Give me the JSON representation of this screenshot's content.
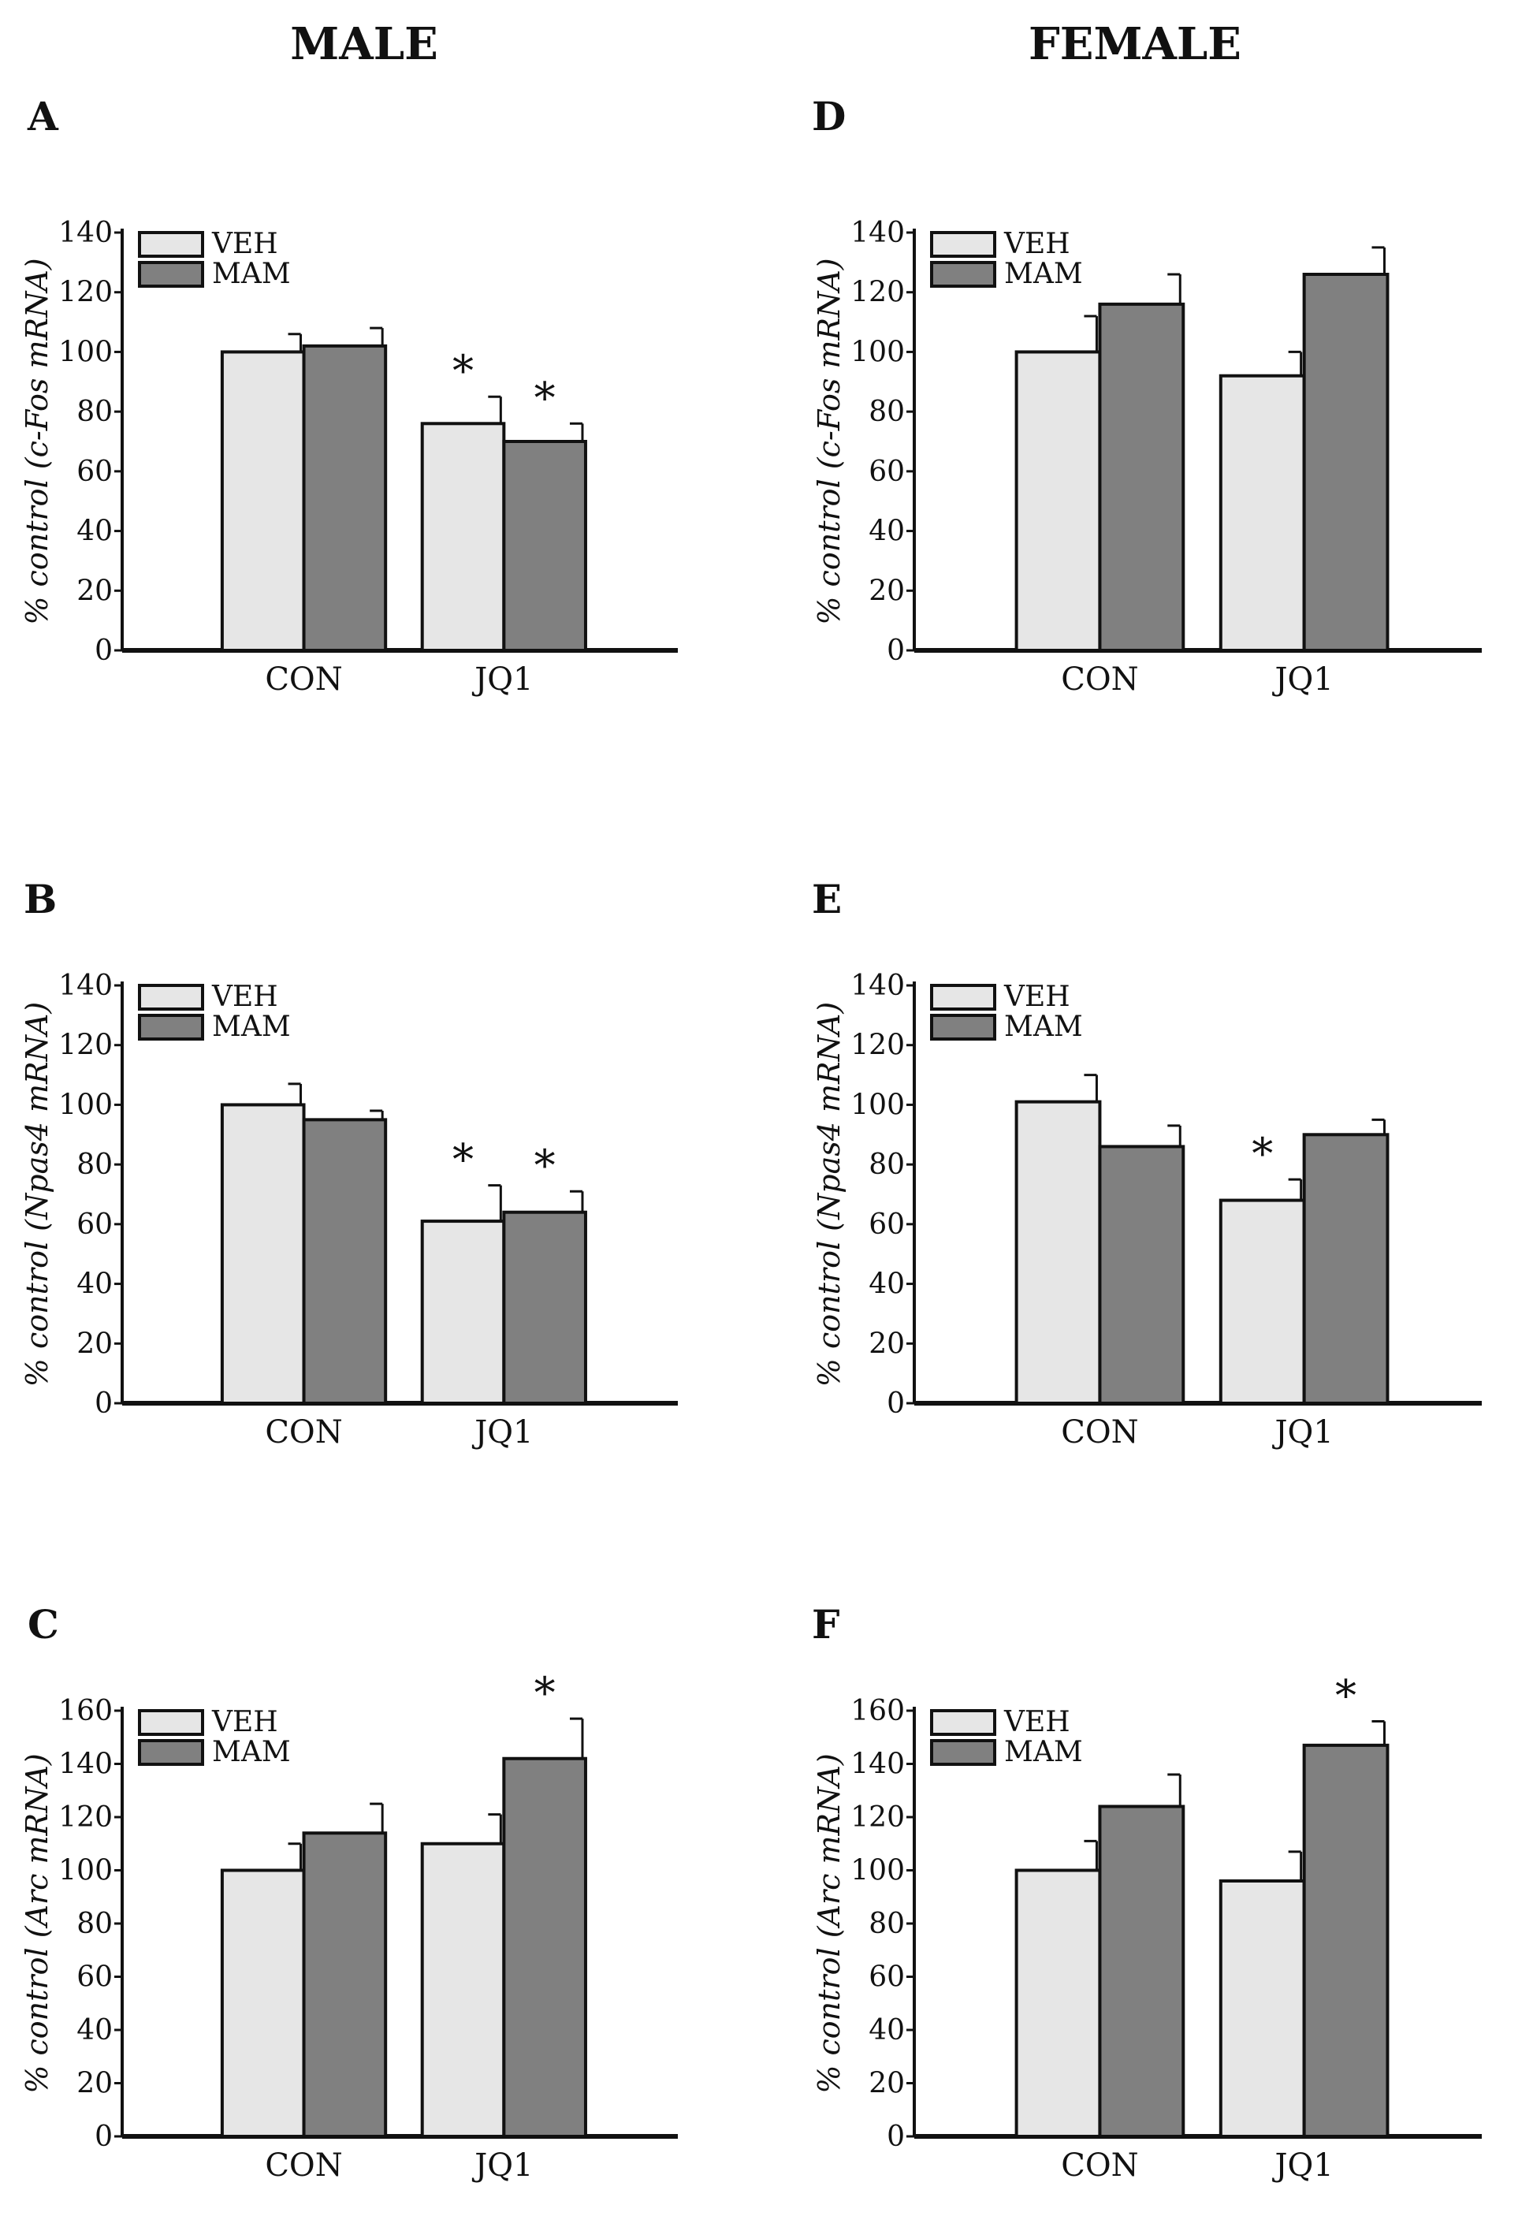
{
  "headers": {
    "male": "MALE",
    "female": "FEMALE"
  },
  "colors": {
    "veh": "#e6e6e6",
    "mam": "#808080",
    "stroke": "#111111",
    "background": "#ffffff"
  },
  "chart_data": [
    {
      "panel": "A",
      "column": "male",
      "type": "bar",
      "categories": [
        "CON",
        "JQ1"
      ],
      "series": [
        {
          "name": "VEH",
          "values": [
            100,
            76
          ],
          "errors": [
            6,
            9
          ],
          "significant": [
            false,
            true
          ]
        },
        {
          "name": "MAM",
          "values": [
            102,
            70
          ],
          "errors": [
            6,
            6
          ],
          "significant": [
            false,
            true
          ]
        }
      ],
      "legend_labels": [
        "VEH",
        "MAM"
      ],
      "ylabel_prefix": "% control (",
      "ylabel_gene": "c-Fos",
      "ylabel_suffix": " mRNA)",
      "ylim": [
        0,
        140
      ],
      "yticks": [
        0,
        20,
        40,
        60,
        80,
        100,
        120,
        140
      ],
      "sig_marker": "*"
    },
    {
      "panel": "B",
      "column": "male",
      "type": "bar",
      "categories": [
        "CON",
        "JQ1"
      ],
      "series": [
        {
          "name": "VEH",
          "values": [
            100,
            61
          ],
          "errors": [
            7,
            12
          ],
          "significant": [
            false,
            true
          ]
        },
        {
          "name": "MAM",
          "values": [
            95,
            64
          ],
          "errors": [
            3,
            7
          ],
          "significant": [
            false,
            true
          ]
        }
      ],
      "legend_labels": [
        "VEH",
        "MAM"
      ],
      "ylabel_prefix": "% control (",
      "ylabel_gene": "Npas4",
      "ylabel_suffix": " mRNA)",
      "ylim": [
        0,
        140
      ],
      "yticks": [
        0,
        20,
        40,
        60,
        80,
        100,
        120,
        140
      ],
      "sig_marker": "*"
    },
    {
      "panel": "C",
      "column": "male",
      "type": "bar",
      "categories": [
        "CON",
        "JQ1"
      ],
      "series": [
        {
          "name": "VEH",
          "values": [
            100,
            110
          ],
          "errors": [
            10,
            11
          ],
          "significant": [
            false,
            false
          ]
        },
        {
          "name": "MAM",
          "values": [
            114,
            142
          ],
          "errors": [
            11,
            15
          ],
          "significant": [
            false,
            true
          ]
        }
      ],
      "legend_labels": [
        "VEH",
        "MAM"
      ],
      "ylabel_prefix": "% control (",
      "ylabel_gene": "Arc",
      "ylabel_suffix": " mRNA)",
      "ylim": [
        0,
        160
      ],
      "yticks": [
        0,
        20,
        40,
        60,
        80,
        100,
        120,
        140,
        160
      ],
      "sig_marker": "*"
    },
    {
      "panel": "D",
      "column": "female",
      "type": "bar",
      "categories": [
        "CON",
        "JQ1"
      ],
      "series": [
        {
          "name": "VEH",
          "values": [
            100,
            92
          ],
          "errors": [
            12,
            8
          ],
          "significant": [
            false,
            false
          ]
        },
        {
          "name": "MAM",
          "values": [
            116,
            126
          ],
          "errors": [
            10,
            9
          ],
          "significant": [
            false,
            false
          ]
        }
      ],
      "legend_labels": [
        "VEH",
        "MAM"
      ],
      "ylabel_prefix": "% control (",
      "ylabel_gene": "c-Fos",
      "ylabel_suffix": " mRNA)",
      "ylim": [
        0,
        140
      ],
      "yticks": [
        0,
        20,
        40,
        60,
        80,
        100,
        120,
        140
      ],
      "sig_marker": "*"
    },
    {
      "panel": "E",
      "column": "female",
      "type": "bar",
      "categories": [
        "CON",
        "JQ1"
      ],
      "series": [
        {
          "name": "VEH",
          "values": [
            101,
            68
          ],
          "errors": [
            9,
            7
          ],
          "significant": [
            false,
            true
          ]
        },
        {
          "name": "MAM",
          "values": [
            86,
            90
          ],
          "errors": [
            7,
            5
          ],
          "significant": [
            false,
            false
          ]
        }
      ],
      "legend_labels": [
        "VEH",
        "MAM"
      ],
      "ylabel_prefix": "% control (",
      "ylabel_gene": "Npas4",
      "ylabel_suffix": " mRNA)",
      "ylim": [
        0,
        140
      ],
      "yticks": [
        0,
        20,
        40,
        60,
        80,
        100,
        120,
        140
      ],
      "sig_marker": "*"
    },
    {
      "panel": "F",
      "column": "female",
      "type": "bar",
      "categories": [
        "CON",
        "JQ1"
      ],
      "series": [
        {
          "name": "VEH",
          "values": [
            100,
            96
          ],
          "errors": [
            11,
            11
          ],
          "significant": [
            false,
            false
          ]
        },
        {
          "name": "MAM",
          "values": [
            124,
            147
          ],
          "errors": [
            12,
            9
          ],
          "significant": [
            false,
            true
          ]
        }
      ],
      "legend_labels": [
        "VEH",
        "MAM"
      ],
      "ylabel_prefix": "% control (",
      "ylabel_gene": "Arc",
      "ylabel_suffix": " mRNA)",
      "ylim": [
        0,
        160
      ],
      "yticks": [
        0,
        20,
        40,
        60,
        80,
        100,
        120,
        140,
        160
      ],
      "sig_marker": "*"
    }
  ]
}
